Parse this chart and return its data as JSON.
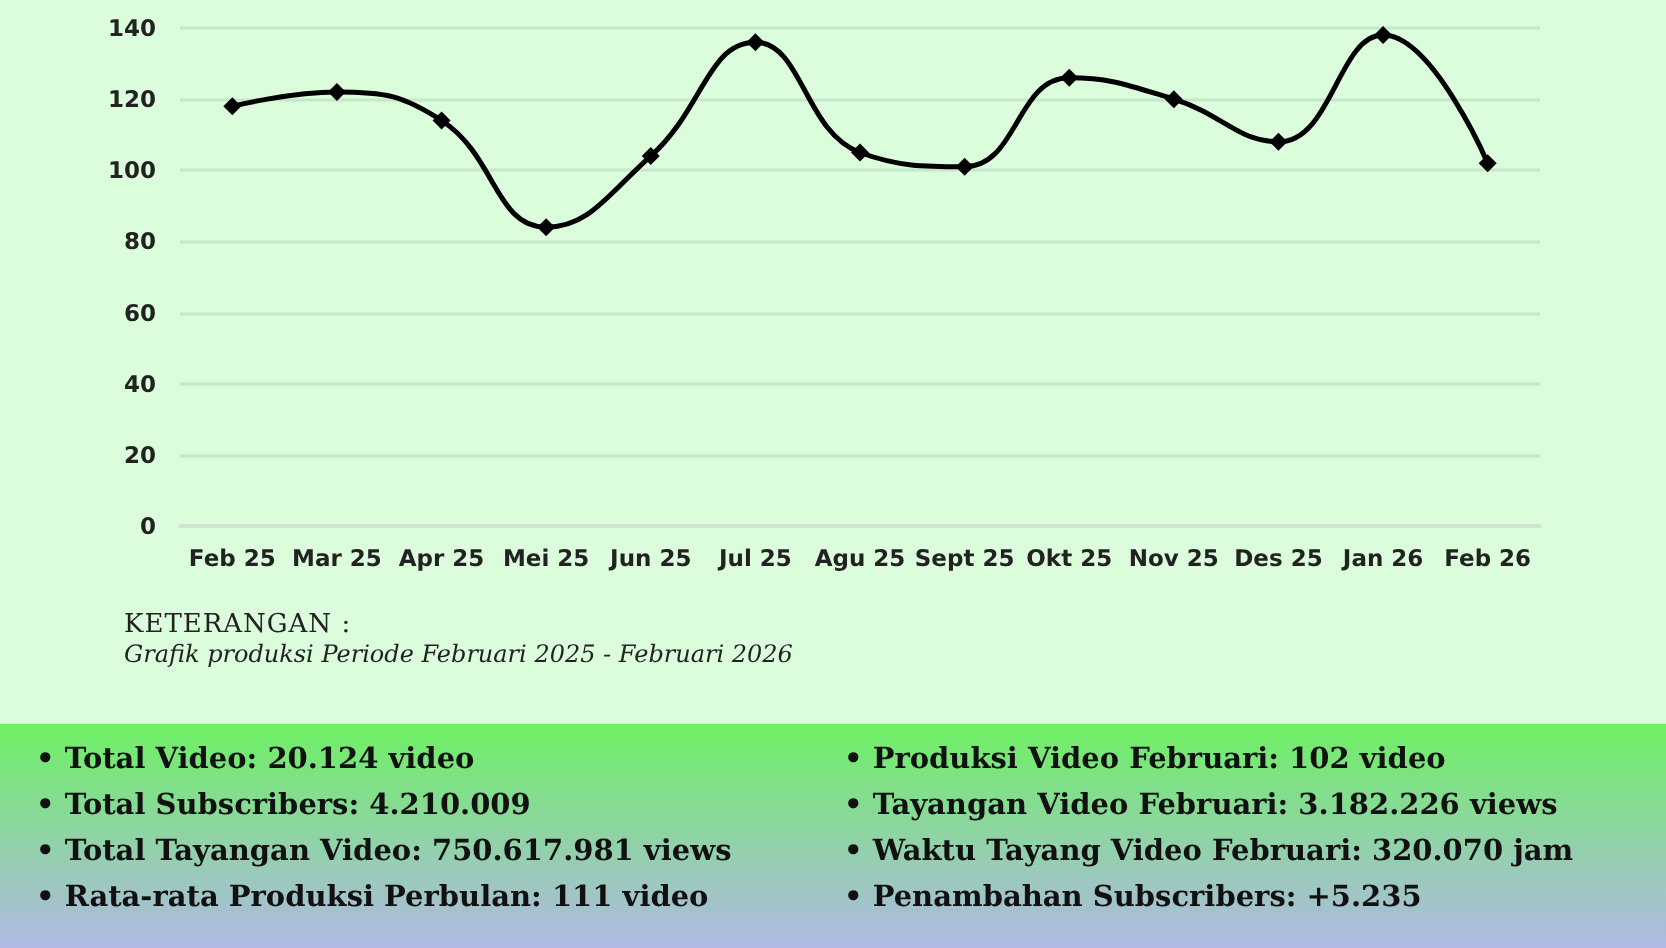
{
  "chart_data": {
    "type": "line",
    "categories": [
      "Feb 25",
      "Mar 25",
      "Apr 25",
      "Mei 25",
      "Jun 25",
      "Jul 25",
      "Agu 25",
      "Sept 25",
      "Okt 25",
      "Nov 25",
      "Des 25",
      "Jan 26",
      "Feb 26"
    ],
    "series": [
      {
        "color": "#000000",
        "values": [
          118,
          122,
          114,
          84,
          104,
          136,
          105,
          101,
          126,
          120,
          108,
          138,
          102
        ]
      }
    ],
    "ylim": [
      0,
      140
    ],
    "yticks": [
      0,
      20,
      40,
      60,
      80,
      100,
      120,
      140
    ],
    "grid": "y",
    "marker": "diamond",
    "line_style": "solid",
    "annotations": [
      "KETERANGAN :",
      "Grafik produksi Periode Februari 2025 - Februari 2026",
      "• Total Video: 20.124 video",
      "• Total Subscribers: 4.210.009",
      "• Total Tayangan Video: 750.617.981 views",
      "• Rata-rata Produksi Perbulan: 111 video",
      "• Produksi Video Februari: 102 video",
      "• Tayangan Video Februari: 3.182.226 views",
      "• Waktu Tayang Video Februari: 320.070 jam",
      "• Penambahan Subscribers: +5.235"
    ]
  }
}
